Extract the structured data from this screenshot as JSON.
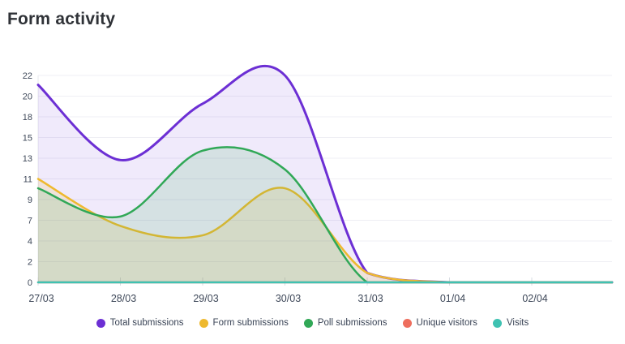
{
  "title": "Form activity",
  "chart_data": {
    "type": "area",
    "title": "Form activity",
    "categories": [
      "27/03",
      "28/03",
      "29/03",
      "30/03",
      "31/03",
      "01/04",
      "02/04"
    ],
    "series": [
      {
        "name": "Total submissions",
        "color": "#6c2fd4",
        "values": [
          21,
          13,
          19,
          22,
          1,
          0,
          0
        ]
      },
      {
        "name": "Form submissions",
        "color": "#eeb92f",
        "values": [
          11,
          6,
          5,
          10,
          1,
          0,
          0
        ]
      },
      {
        "name": "Poll submissions",
        "color": "#31a857",
        "values": [
          10,
          7,
          14,
          12,
          0,
          0,
          0
        ]
      },
      {
        "name": "Unique visitors",
        "color": "#ee6e5e",
        "values": [
          0,
          0,
          0,
          0,
          0,
          0,
          0
        ]
      },
      {
        "name": "Visits",
        "color": "#3fc2b2",
        "values": [
          0,
          0,
          0,
          0,
          0,
          0,
          0
        ]
      }
    ],
    "y_ticks": [
      {
        "v": 0,
        "label": "0"
      },
      {
        "v": 2.2,
        "label": "2"
      },
      {
        "v": 4.4,
        "label": "4"
      },
      {
        "v": 6.6,
        "label": "7"
      },
      {
        "v": 8.8,
        "label": "9"
      },
      {
        "v": 11,
        "label": "11"
      },
      {
        "v": 13.2,
        "label": "13"
      },
      {
        "v": 15.4,
        "label": "15"
      },
      {
        "v": 17.6,
        "label": "18"
      },
      {
        "v": 19.8,
        "label": "20"
      },
      {
        "v": 22,
        "label": "22"
      }
    ],
    "ylim": [
      0,
      22
    ],
    "grid": true,
    "legend_position": "bottom"
  },
  "colors": {
    "background": "#ffffff",
    "grid": "#efeff4",
    "axis_line": "#e7e8ee",
    "tick": "#d9dde3",
    "axis_text": "#3e4859",
    "legend_text": "#3a4456",
    "title_text": "#2f3237"
  }
}
